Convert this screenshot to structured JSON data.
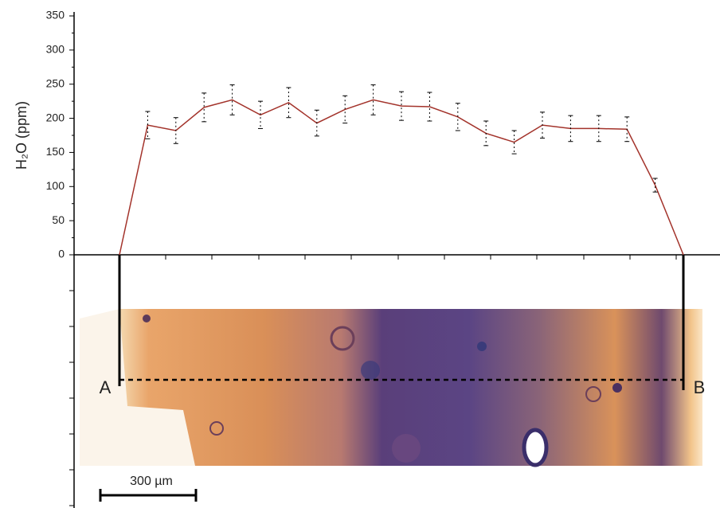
{
  "chart_data": {
    "type": "line",
    "ylabel": "H₂O (ppm)",
    "categories": [
      null,
      null,
      null,
      null,
      null,
      null,
      null,
      null,
      null,
      null,
      null,
      null,
      null,
      null,
      null,
      null,
      null,
      null,
      null,
      null,
      null
    ],
    "series": [
      {
        "color": "#a3332b",
        "values": [
          0,
          190,
          182,
          216,
          227,
          205,
          223,
          193,
          213,
          227,
          218,
          217,
          202,
          178,
          165,
          190,
          185,
          185,
          184,
          102,
          0
        ],
        "errors": [
          null,
          20,
          19,
          21,
          22,
          20,
          22,
          19,
          20,
          22,
          21,
          21,
          20,
          18,
          17,
          19,
          19,
          19,
          18,
          10,
          null
        ]
      }
    ],
    "ylim": [
      0,
      350
    ],
    "yticks": [
      0,
      50,
      100,
      150,
      200,
      250,
      300,
      350
    ],
    "annotations": {
      "start": "A",
      "end": "B",
      "scale_bar": "300 µm"
    }
  }
}
